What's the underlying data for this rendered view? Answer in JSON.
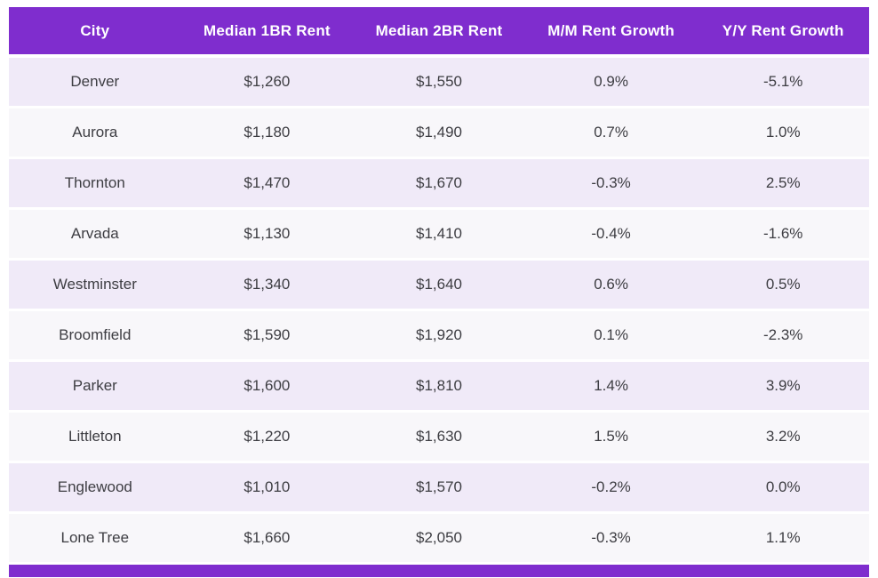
{
  "chart_data": {
    "type": "table",
    "title": "",
    "columns": [
      "City",
      "Median 1BR Rent",
      "Median 2BR Rent",
      "M/M Rent Growth",
      "Y/Y Rent Growth"
    ],
    "rows": [
      [
        "Denver",
        "$1,260",
        "$1,550",
        "0.9%",
        "-5.1%"
      ],
      [
        "Aurora",
        "$1,180",
        "$1,490",
        "0.7%",
        "1.0%"
      ],
      [
        "Thornton",
        "$1,470",
        "$1,670",
        "-0.3%",
        "2.5%"
      ],
      [
        "Arvada",
        "$1,130",
        "$1,410",
        "-0.4%",
        "-1.6%"
      ],
      [
        "Westminster",
        "$1,340",
        "$1,640",
        "0.6%",
        "0.5%"
      ],
      [
        "Broomfield",
        "$1,590",
        "$1,920",
        "0.1%",
        "-2.3%"
      ],
      [
        "Parker",
        "$1,600",
        "$1,810",
        "1.4%",
        "3.9%"
      ],
      [
        "Littleton",
        "$1,220",
        "$1,630",
        "1.5%",
        "3.2%"
      ],
      [
        "Englewood",
        "$1,010",
        "$1,570",
        "-0.2%",
        "0.0%"
      ],
      [
        "Lone Tree",
        "$1,660",
        "$2,050",
        "-0.3%",
        "1.1%"
      ]
    ]
  },
  "colors": {
    "header_bg": "#7F2DCE",
    "header_text": "#FFFFFF",
    "row_lavender": "#F0EAF8",
    "row_light": "#F8F7FA",
    "cell_text": "#3D3D42",
    "page_bg": "#FFFFFF"
  }
}
